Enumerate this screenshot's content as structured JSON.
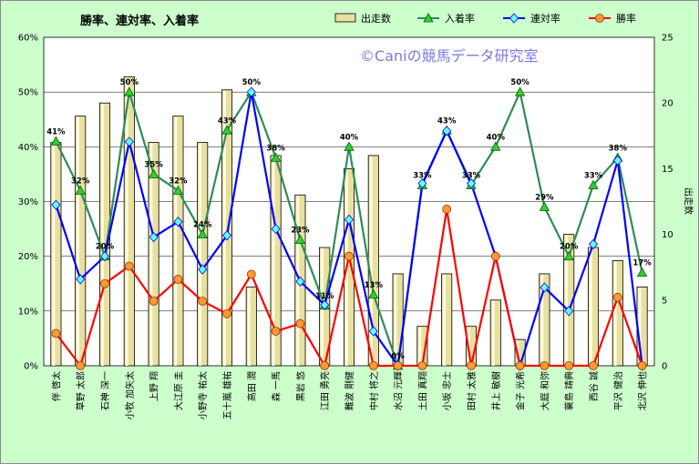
{
  "chart_data": {
    "type": "bar",
    "title": "勝率、連対率、入着率",
    "watermark": "©Caniの競馬データ研究室",
    "y2label": "出走数",
    "ylim": [
      0,
      60
    ],
    "y_ticks": [
      "0%",
      "10%",
      "20%",
      "30%",
      "40%",
      "50%",
      "60%"
    ],
    "y2lim": [
      0,
      25
    ],
    "y2_ticks": [
      "0",
      "5",
      "10",
      "15",
      "20",
      "25"
    ],
    "legend_position": "top-right",
    "colors": {
      "bars_fill": "#e8e0a0",
      "bars_edge": "#000000",
      "rate3": "#2e8b57",
      "rate3_marker": "#33cc33",
      "rate2": "#0000ff",
      "rate2_marker": "#66ffff",
      "rate1": "#ff0000",
      "rate1_marker": "#ff9933",
      "plot_bg": "#ffffff",
      "chart_bg": "#ccffcc"
    },
    "categories": [
      "伴 啓太",
      "草野 太郎",
      "石神 深一",
      "小牧 加矢太",
      "上野 翔",
      "大江原 圭",
      "小野寺 祐太",
      "五十嵐 雄祐",
      "高田 潤",
      "森 一馬",
      "黒岩 悠",
      "江田 勇亮",
      "難波 剛健",
      "中村 将之",
      "水沼 元輝",
      "土田 真翔",
      "小坂 忠士",
      "田村 太雅",
      "井上 敏樹",
      "金子 光希",
      "大庭 和弥",
      "蓑島 靖典",
      "西谷 誠",
      "平沢 健治",
      "北沢 伸也"
    ],
    "series": [
      {
        "name": "出走数",
        "axis": "right",
        "values": [
          17,
          19,
          20,
          22,
          17,
          19,
          17,
          21,
          6,
          16,
          13,
          9,
          15,
          16,
          7,
          3,
          7,
          3,
          5,
          2,
          7,
          10,
          9,
          8,
          6
        ]
      },
      {
        "name": "入着率",
        "axis": "left",
        "values": [
          41,
          32,
          20,
          50,
          35,
          32,
          24,
          43,
          50,
          38,
          23,
          11,
          40,
          13,
          0,
          33,
          43,
          33,
          40,
          50,
          29,
          20,
          33,
          38,
          17
        ]
      },
      {
        "name": "連対率",
        "axis": "left",
        "values": [
          29.4,
          15.8,
          20,
          40.9,
          23.5,
          26.3,
          17.6,
          23.8,
          50,
          25,
          15.4,
          11.1,
          26.7,
          6.3,
          0,
          33.3,
          42.9,
          33.3,
          20,
          0,
          14.3,
          10,
          22.2,
          37.5,
          0
        ]
      },
      {
        "name": "勝率",
        "axis": "left",
        "values": [
          5.9,
          0,
          15,
          18.2,
          11.8,
          15.8,
          11.8,
          9.5,
          16.7,
          6.3,
          7.7,
          0,
          20,
          0,
          0,
          0,
          28.6,
          0,
          20,
          0,
          0,
          0,
          0,
          12.5,
          0
        ]
      }
    ],
    "data_labels": [
      "41%",
      "32%",
      "20%",
      "50%",
      "35%",
      "32%",
      "24%",
      "43%",
      "50%",
      "38%",
      "23%",
      "11%",
      "40%",
      "13%",
      "0%",
      "33%",
      "43%",
      "33%",
      "40%",
      "50%",
      "29%",
      "20%",
      "33%",
      "38%",
      "17%"
    ]
  }
}
